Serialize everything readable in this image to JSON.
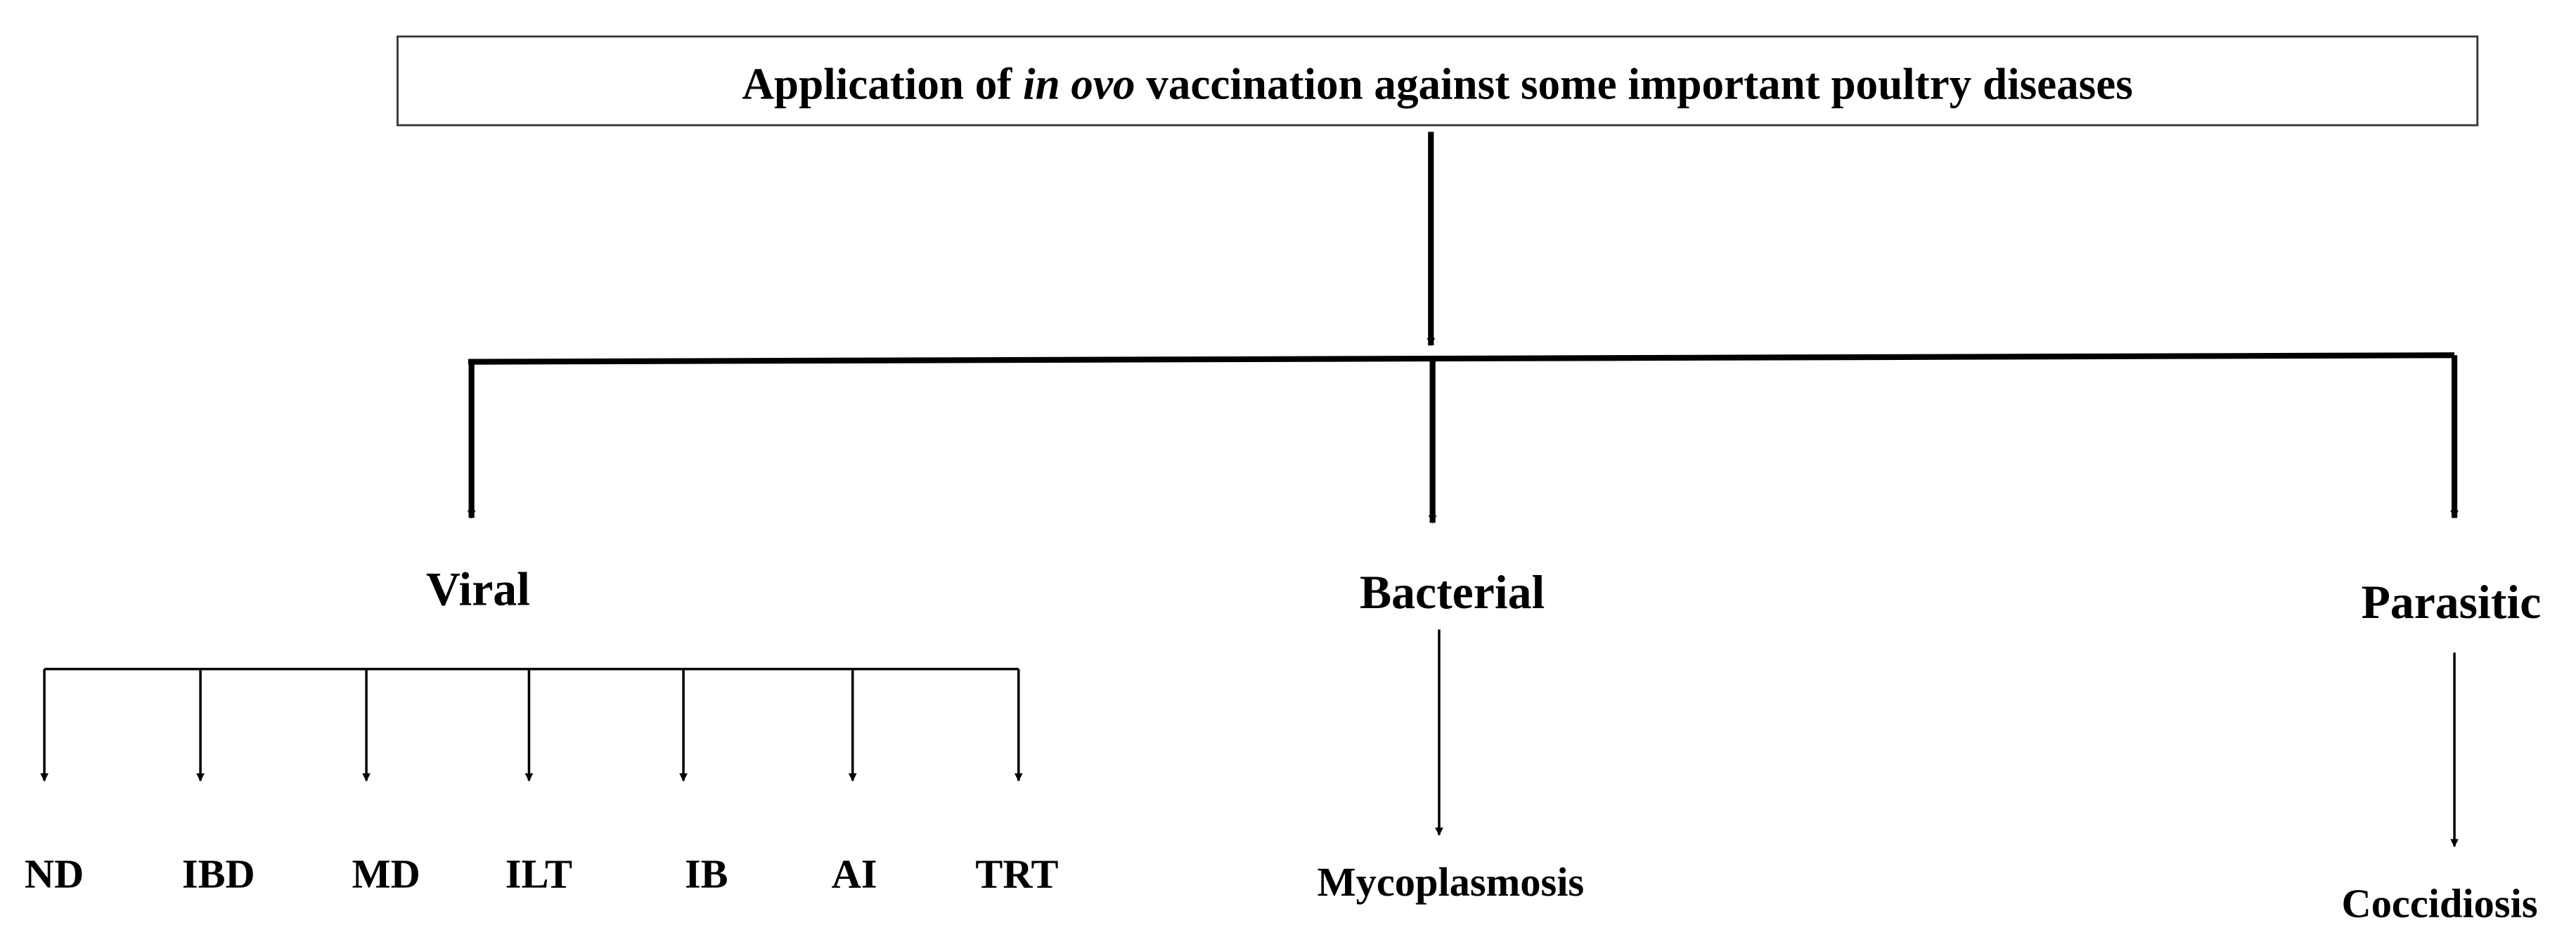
{
  "header": {
    "title_start": "Application of",
    "title_italic": "in ovo",
    "title_end": "vaccination against some important poultry diseases"
  },
  "categories": [
    {
      "label": "Viral",
      "children": [
        "ND",
        "IBD",
        "MD",
        "ILT",
        "IB",
        "AI",
        "TRT"
      ]
    },
    {
      "label": "Bacterial",
      "children": [
        "Mycoplasmosis"
      ]
    },
    {
      "label": "Parasitic",
      "children": [
        "Coccidiosis"
      ]
    }
  ]
}
